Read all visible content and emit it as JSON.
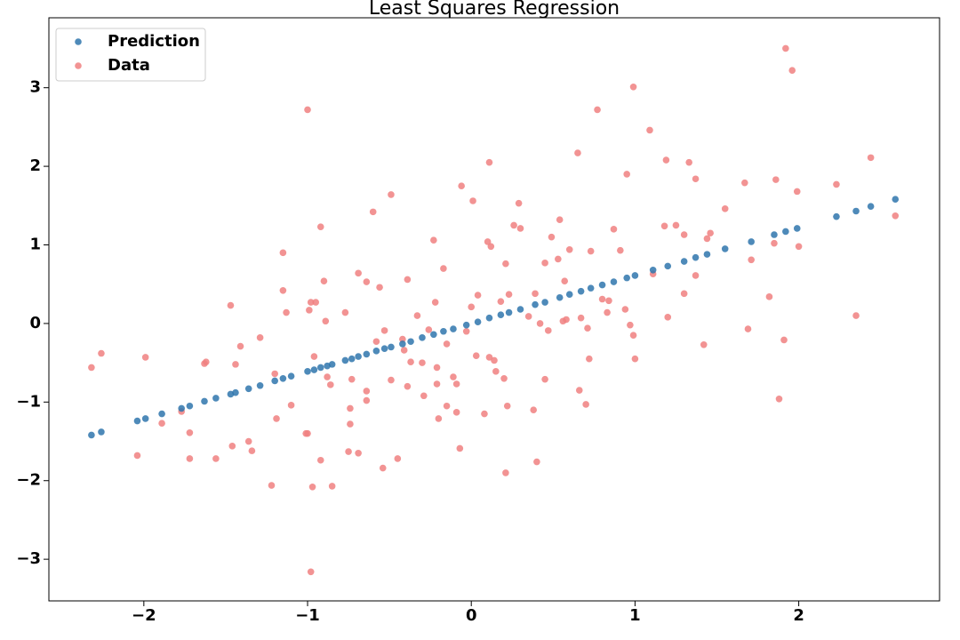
{
  "chart_data": {
    "type": "scatter",
    "title": "Least Squares Regression",
    "legend": "upper left",
    "xlim": [
      -2.58,
      2.86
    ],
    "ylim": [
      -3.53,
      3.89
    ],
    "xticks": [
      {
        "value": -2,
        "label": "−2"
      },
      {
        "value": -1,
        "label": "−1"
      },
      0,
      1,
      2
    ],
    "yticks": [
      {
        "value": -3,
        "label": "−3"
      },
      {
        "value": -2,
        "label": "−2"
      },
      {
        "value": -1,
        "label": "−1"
      },
      0,
      1,
      2,
      3
    ],
    "series": [
      {
        "name": "Prediction",
        "color": "#2f76ad",
        "x": [
          -2.32,
          -2.26,
          -2.04,
          -1.99,
          -1.89,
          -1.77,
          -1.72,
          -1.63,
          -1.56,
          -1.47,
          -1.44,
          -1.36,
          -1.29,
          -1.2,
          -1.15,
          -1.1,
          -1.0,
          -0.96,
          -0.92,
          -0.88,
          -0.85,
          -0.77,
          -0.73,
          -0.69,
          -0.64,
          -0.58,
          -0.53,
          -0.49,
          -0.42,
          -0.37,
          -0.3,
          -0.23,
          -0.17,
          -0.11,
          -0.03,
          0.04,
          0.11,
          0.18,
          0.23,
          0.3,
          0.39,
          0.45,
          0.54,
          0.6,
          0.67,
          0.73,
          0.8,
          0.87,
          0.95,
          1.0,
          1.11,
          1.2,
          1.3,
          1.37,
          1.44,
          1.55,
          1.71,
          1.85,
          1.92,
          1.99,
          2.23,
          2.35,
          2.44,
          2.59
        ],
        "values": [
          -1.42,
          -1.38,
          -1.24,
          -1.21,
          -1.15,
          -1.08,
          -1.05,
          -0.99,
          -0.95,
          -0.9,
          -0.88,
          -0.83,
          -0.79,
          -0.73,
          -0.7,
          -0.67,
          -0.61,
          -0.59,
          -0.56,
          -0.54,
          -0.52,
          -0.47,
          -0.45,
          -0.42,
          -0.39,
          -0.35,
          -0.32,
          -0.3,
          -0.26,
          -0.23,
          -0.18,
          -0.14,
          -0.1,
          -0.07,
          -0.02,
          0.02,
          0.07,
          0.11,
          0.14,
          0.18,
          0.24,
          0.27,
          0.33,
          0.37,
          0.41,
          0.45,
          0.49,
          0.53,
          0.58,
          0.61,
          0.68,
          0.73,
          0.79,
          0.84,
          0.88,
          0.95,
          1.04,
          1.13,
          1.17,
          1.21,
          1.36,
          1.43,
          1.49,
          1.58
        ]
      },
      {
        "name": "Data",
        "color": "#f08080",
        "x": [
          -2.32,
          -2.26,
          -1.99,
          -2.04,
          -1.89,
          -1.72,
          -1.72,
          -1.77,
          -1.63,
          -1.62,
          -1.56,
          -1.47,
          -1.44,
          -1.46,
          -1.41,
          -1.36,
          -1.34,
          -1.29,
          -1.22,
          -1.2,
          -1.19,
          -1.15,
          -1.15,
          -1.13,
          -1.1,
          -1.0,
          -0.99,
          -0.98,
          -0.95,
          -0.96,
          -1.0,
          -1.01,
          -0.98,
          -0.97,
          -0.92,
          -0.92,
          -0.9,
          -0.89,
          -0.88,
          -0.86,
          -0.85,
          -0.77,
          -0.75,
          -0.74,
          -0.74,
          -0.73,
          -0.69,
          -0.69,
          -0.64,
          -0.64,
          -0.64,
          -0.6,
          -0.58,
          -0.56,
          -0.54,
          -0.53,
          -0.49,
          -0.49,
          -0.45,
          -0.42,
          -0.41,
          -0.39,
          -0.39,
          -0.37,
          -0.33,
          -0.3,
          -0.29,
          -0.26,
          -0.23,
          -0.22,
          -0.21,
          -0.21,
          -0.2,
          -0.17,
          -0.15,
          -0.15,
          -0.11,
          -0.09,
          -0.09,
          -0.07,
          -0.06,
          -0.03,
          0,
          0.01,
          0.04,
          0.03,
          0.08,
          0.11,
          0.1,
          0.12,
          0.11,
          0.14,
          0.15,
          0.18,
          0.2,
          0.21,
          0.21,
          0.22,
          0.23,
          0.26,
          0.29,
          0.3,
          0.35,
          0.38,
          0.39,
          0.4,
          0.42,
          0.45,
          0.45,
          0.47,
          0.49,
          0.53,
          0.54,
          0.56,
          0.57,
          0.58,
          0.6,
          0.65,
          0.66,
          0.67,
          0.7,
          0.71,
          0.72,
          0.73,
          0.77,
          0.8,
          0.83,
          0.84,
          0.87,
          0.91,
          0.94,
          0.95,
          0.97,
          0.99,
          0.99,
          1.0,
          1.09,
          1.11,
          1.19,
          1.18,
          1.2,
          1.25,
          1.3,
          1.3,
          1.33,
          1.37,
          1.37,
          1.42,
          1.44,
          1.46,
          1.55,
          1.67,
          1.69,
          1.71,
          1.82,
          1.85,
          1.86,
          1.88,
          1.91,
          1.92,
          1.96,
          1.99,
          2.0,
          2.23,
          2.35,
          2.44,
          2.59
        ],
        "values": [
          -0.56,
          -0.38,
          -0.43,
          -1.68,
          -1.27,
          -1.39,
          -1.72,
          -1.12,
          -0.51,
          -0.49,
          -1.72,
          0.23,
          -0.52,
          -1.56,
          -0.29,
          -1.5,
          -1.62,
          -0.18,
          -2.06,
          -0.64,
          -1.21,
          0.42,
          0.9,
          0.14,
          -1.04,
          2.72,
          0.17,
          0.27,
          0.27,
          -0.42,
          -1.4,
          -1.4,
          -3.16,
          -2.08,
          -1.74,
          1.23,
          0.54,
          0.03,
          -0.68,
          -0.78,
          -2.07,
          0.14,
          -1.63,
          -1.08,
          -1.28,
          -0.71,
          0.64,
          -1.65,
          0.53,
          -0.98,
          -0.86,
          1.42,
          -0.23,
          0.46,
          -1.84,
          -0.09,
          1.64,
          -0.72,
          -1.72,
          -0.2,
          -0.34,
          -0.8,
          0.56,
          -0.49,
          0.1,
          -0.5,
          -0.92,
          -0.08,
          1.06,
          0.27,
          -0.77,
          -0.56,
          -1.21,
          0.7,
          -1.05,
          -0.26,
          -0.68,
          -1.13,
          -0.77,
          -1.59,
          1.75,
          -0.1,
          0.21,
          1.56,
          0.36,
          -0.41,
          -1.15,
          2.05,
          1.04,
          0.98,
          -0.43,
          -0.47,
          -0.61,
          0.28,
          -0.7,
          0.76,
          -1.9,
          -1.05,
          0.37,
          1.25,
          1.53,
          1.21,
          0.09,
          -1.1,
          0.38,
          -1.76,
          0,
          0.77,
          -0.71,
          -0.09,
          1.1,
          0.82,
          1.32,
          0.03,
          0.54,
          0.05,
          0.94,
          2.17,
          -0.85,
          0.07,
          -1.03,
          -0.06,
          -0.45,
          0.92,
          2.72,
          0.31,
          0.14,
          0.29,
          1.2,
          0.93,
          0.18,
          1.9,
          -0.02,
          3.01,
          -0.15,
          -0.45,
          2.46,
          0.63,
          2.08,
          1.24,
          0.08,
          1.25,
          1.13,
          0.38,
          2.05,
          0.61,
          1.84,
          -0.27,
          1.08,
          1.15,
          1.46,
          1.79,
          -0.07,
          0.81,
          0.34,
          1.02,
          1.83,
          -0.96,
          -0.21,
          3.5,
          3.22,
          1.68,
          0.98,
          1.77,
          0.1,
          2.11,
          1.37
        ]
      }
    ]
  }
}
